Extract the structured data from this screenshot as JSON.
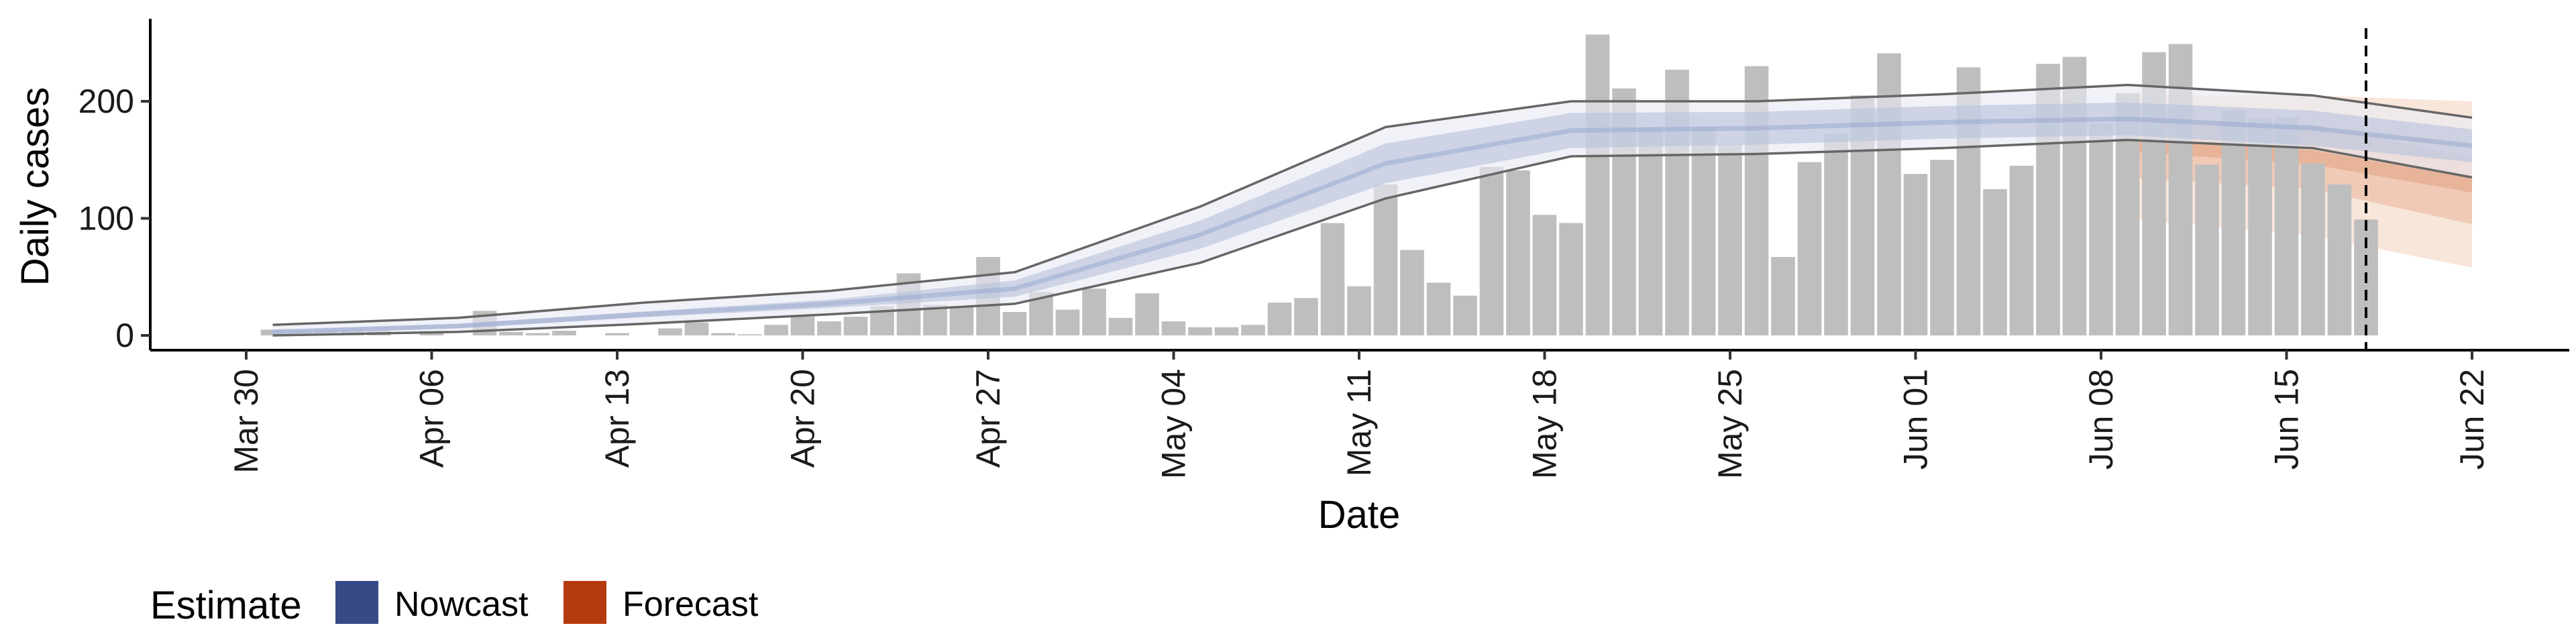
{
  "chart_data": {
    "type": "bar",
    "xlabel": "Date",
    "ylabel": "Daily cases",
    "ylim": [
      -12,
      268
    ],
    "yticks": [
      0,
      100,
      200
    ],
    "xticks": [
      "2020-03-30",
      "2020-04-06",
      "2020-04-13",
      "2020-04-20",
      "2020-04-27",
      "2020-05-04",
      "2020-05-11",
      "2020-05-18",
      "2020-05-25",
      "2020-06-01",
      "2020-06-08",
      "2020-06-15",
      "2020-06-22"
    ],
    "xtick_labels": [
      "Mar 30",
      "Apr 06",
      "Apr 13",
      "Apr 20",
      "Apr 27",
      "May 04",
      "May 11",
      "May 18",
      "May 25",
      "Jun 01",
      "Jun 08",
      "Jun 15",
      "Jun 22"
    ],
    "grid": false,
    "legend": {
      "title": "Estimate",
      "position": "bottom-left",
      "entries": [
        {
          "label": "Nowcast",
          "color": "#354a87"
        },
        {
          "label": "Forecast",
          "color": "#b5390e"
        }
      ]
    },
    "bar_color": "#bebebe",
    "bars": {
      "start": "2020-03-31",
      "values": [
        5,
        4,
        4,
        4,
        4,
        0,
        4,
        0,
        21,
        3,
        2,
        4,
        0,
        2,
        0,
        6,
        11,
        2,
        1,
        9,
        16,
        12,
        16,
        25,
        53,
        26,
        24,
        67,
        20,
        37,
        22,
        40,
        15,
        36,
        12,
        7,
        7,
        9,
        28,
        32,
        96,
        42,
        129,
        73,
        45,
        34,
        144,
        141,
        103,
        96,
        257,
        211,
        178,
        227,
        178,
        163,
        230,
        67,
        148,
        172,
        205,
        241,
        138,
        150,
        229,
        125,
        145,
        232,
        238,
        181,
        207,
        242,
        249,
        146,
        192,
        185,
        186,
        147,
        129,
        99
      ]
    },
    "nowcast": {
      "start": "2020-03-31",
      "end": "2020-06-08",
      "median": [
        [
          0,
          3
        ],
        [
          7,
          8
        ],
        [
          14,
          18
        ],
        [
          21,
          27
        ],
        [
          28,
          40
        ],
        [
          35,
          86
        ],
        [
          42,
          147
        ],
        [
          49,
          175
        ],
        [
          56,
          177
        ],
        [
          63,
          182
        ],
        [
          70,
          185
        ],
        [
          77,
          177
        ],
        [
          83,
          162
        ]
      ],
      "inner": [
        [
          0,
          1.5,
          4.5
        ],
        [
          7,
          6,
          10
        ],
        [
          14,
          15.5,
          20.5
        ],
        [
          21,
          23.5,
          30.5
        ],
        [
          28,
          33,
          47
        ],
        [
          35,
          74,
          98
        ],
        [
          42,
          130,
          164
        ],
        [
          49,
          160,
          190
        ],
        [
          56,
          163,
          191
        ],
        [
          63,
          168,
          196
        ],
        [
          70,
          171,
          199
        ],
        [
          77,
          162,
          192
        ],
        [
          83,
          148,
          176
        ]
      ],
      "outer": [
        [
          0,
          0,
          9
        ],
        [
          7,
          3,
          15
        ],
        [
          14,
          10,
          28
        ],
        [
          21,
          18,
          38
        ],
        [
          28,
          27,
          54
        ],
        [
          35,
          62,
          110
        ],
        [
          42,
          117,
          178
        ],
        [
          49,
          153,
          200
        ],
        [
          56,
          155,
          200
        ],
        [
          63,
          160,
          206
        ],
        [
          70,
          167,
          214
        ],
        [
          77,
          160,
          205
        ],
        [
          83,
          135,
          186
        ]
      ],
      "color": "#354a87"
    },
    "forecast": {
      "start": "2020-06-09",
      "end": "2020-06-21",
      "median": [
        [
          70,
          163
        ],
        [
          77,
          152
        ],
        [
          83,
          128
        ]
      ],
      "inner": [
        [
          70,
          135,
          185
        ],
        [
          77,
          125,
          180
        ],
        [
          83,
          95,
          152
        ]
      ],
      "outer": [
        [
          70,
          100,
          205
        ],
        [
          77,
          85,
          205
        ],
        [
          83,
          58,
          200
        ]
      ],
      "color": "#b5390e"
    },
    "vline": {
      "date": "2020-06-18",
      "style": "dashed"
    }
  }
}
